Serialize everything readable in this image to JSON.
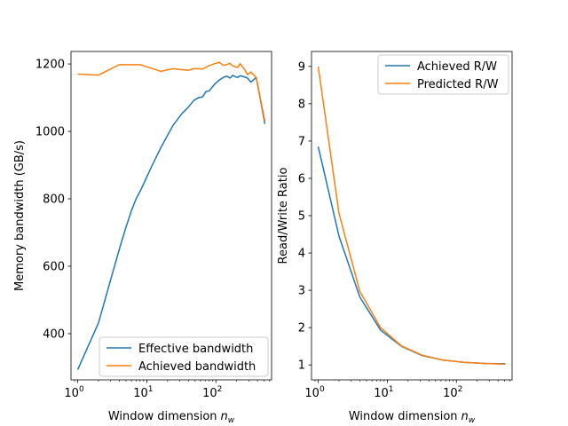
{
  "colors": {
    "blue": "#1f77b4",
    "orange": "#ff7f0e"
  },
  "chart_data": [
    {
      "type": "line",
      "xscale": "log",
      "xlim": [
        0.8,
        640
      ],
      "ylim": [
        263,
        1237
      ],
      "xlabel": "Window dimension",
      "xlabel_symbol": "n",
      "xlabel_sub": "w",
      "ylabel": "Memory bandwidth (GB/s)",
      "xticks": [
        {
          "value": 1,
          "base": "10",
          "exp": "0"
        },
        {
          "value": 10,
          "base": "10",
          "exp": "1"
        },
        {
          "value": 100,
          "base": "10",
          "exp": "2"
        }
      ],
      "yticks": [
        400,
        600,
        800,
        1000,
        1200
      ],
      "legend_loc": "lower-right",
      "series": [
        {
          "name": "Effective bandwidth",
          "color": "#1f77b4",
          "x": [
            1,
            2,
            3,
            4,
            5,
            6,
            7,
            8,
            12,
            16,
            24,
            32,
            40,
            48,
            56,
            64,
            72,
            80,
            96,
            112,
            128,
            144,
            160,
            176,
            192,
            208,
            224,
            256,
            288,
            320,
            384,
            512
          ],
          "y": [
            293,
            432,
            560,
            650,
            716,
            765,
            800,
            822,
            900,
            952,
            1018,
            1052,
            1072,
            1092,
            1100,
            1102,
            1118,
            1120,
            1140,
            1152,
            1160,
            1164,
            1158,
            1166,
            1162,
            1160,
            1165,
            1162,
            1158,
            1146,
            1160,
            1022
          ]
        },
        {
          "name": "Achieved bandwidth",
          "color": "#ff7f0e",
          "x": [
            1,
            2,
            4,
            8,
            16,
            24,
            32,
            40,
            48,
            56,
            64,
            72,
            80,
            96,
            112,
            128,
            144,
            160,
            176,
            192,
            208,
            224,
            256,
            288,
            320,
            384,
            512
          ],
          "y": [
            1170,
            1167,
            1198,
            1198,
            1178,
            1186,
            1183,
            1181,
            1186,
            1186,
            1185,
            1190,
            1195,
            1201,
            1205,
            1196,
            1198,
            1202,
            1194,
            1192,
            1190,
            1201,
            1186,
            1168,
            1176,
            1160,
            1030
          ]
        }
      ]
    },
    {
      "type": "line",
      "xscale": "log",
      "xlim": [
        0.8,
        640
      ],
      "ylim": [
        0.6,
        9.4
      ],
      "xlabel": "Window dimension",
      "xlabel_symbol": "n",
      "xlabel_sub": "w",
      "ylabel": "Read/Write Ratio",
      "xticks": [
        {
          "value": 1,
          "base": "10",
          "exp": "0"
        },
        {
          "value": 10,
          "base": "10",
          "exp": "1"
        },
        {
          "value": 100,
          "base": "10",
          "exp": "2"
        }
      ],
      "yticks": [
        1,
        2,
        3,
        4,
        5,
        6,
        7,
        8,
        9
      ],
      "legend_loc": "upper-right",
      "series": [
        {
          "name": "Achieved R/W",
          "color": "#1f77b4",
          "x": [
            1,
            2,
            4,
            8,
            16,
            32,
            64,
            128,
            256,
            512
          ],
          "y": [
            6.85,
            4.45,
            2.82,
            1.93,
            1.5,
            1.25,
            1.13,
            1.07,
            1.04,
            1.03
          ]
        },
        {
          "name": "Predicted R/W",
          "color": "#ff7f0e",
          "x": [
            1,
            2,
            4,
            8,
            16,
            32,
            64,
            128,
            256,
            512
          ],
          "y": [
            9.0,
            5.06,
            2.97,
            2.0,
            1.51,
            1.26,
            1.13,
            1.07,
            1.04,
            1.02
          ]
        }
      ]
    }
  ]
}
